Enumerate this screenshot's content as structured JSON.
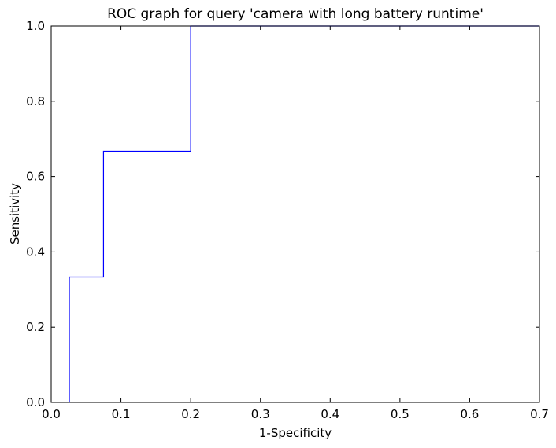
{
  "chart_data": {
    "type": "line",
    "title": "ROC graph for query 'camera with long battery runtime'",
    "xlabel": "1-Specificity",
    "ylabel": "Sensitivity",
    "xlim": [
      0.0,
      0.7
    ],
    "ylim": [
      0.0,
      1.0
    ],
    "xticks": [
      "0.0",
      "0.1",
      "0.2",
      "0.3",
      "0.4",
      "0.5",
      "0.6",
      "0.7"
    ],
    "yticks": [
      "0.0",
      "0.2",
      "0.4",
      "0.6",
      "0.8",
      "1.0"
    ],
    "grid": false,
    "series": [
      {
        "color": "#0000ff",
        "x": [
          0.026,
          0.026,
          0.075,
          0.075,
          0.2,
          0.2,
          0.7
        ],
        "y": [
          0.0,
          0.333,
          0.333,
          0.667,
          0.667,
          1.0,
          1.0
        ]
      }
    ]
  }
}
